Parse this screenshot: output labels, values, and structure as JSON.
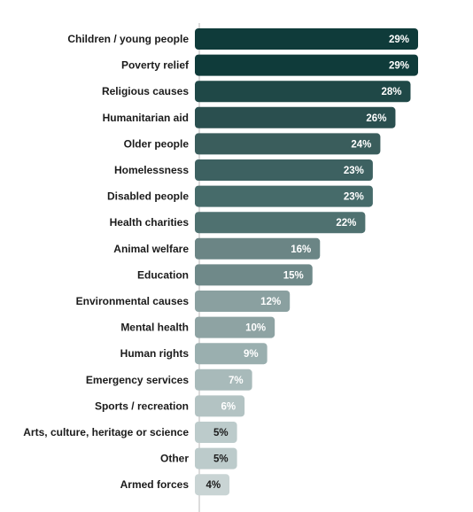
{
  "chart_data": {
    "type": "bar",
    "orientation": "horizontal",
    "title": "",
    "xlabel": "",
    "ylabel": "",
    "value_suffix": "%",
    "grid": false,
    "legend": "none",
    "xlim": [
      0,
      35
    ],
    "categories": [
      "Children / young people",
      "Poverty relief",
      "Religious causes",
      "Humanitarian aid",
      "Older people",
      "Homelessness",
      "Disabled people",
      "Health charities",
      "Animal welfare",
      "Education",
      "Environmental causes",
      "Mental health",
      "Human rights",
      "Emergency services",
      "Sports / recreation",
      "Arts, culture, heritage or science",
      "Other",
      "Armed forces"
    ],
    "values": [
      29,
      29,
      28,
      26,
      24,
      23,
      23,
      22,
      16,
      15,
      12,
      10,
      9,
      7,
      6,
      5,
      5,
      4
    ],
    "colors": [
      "#0f3b3a",
      "#0f3b3a",
      "#1f4847",
      "#2a4f4f",
      "#3a5d5c",
      "#3d6161",
      "#466b6a",
      "#4f7170",
      "#6b8585",
      "#6f8989",
      "#8aa0a0",
      "#8ea3a3",
      "#9aafaf",
      "#a8baba",
      "#b3c3c3",
      "#bccbcb",
      "#bccbcb",
      "#c9d4d4"
    ],
    "axis_color": "#b8b8b8",
    "value_label_color": "#ffffff",
    "value_label_dark_color": "#1b1b1b"
  }
}
